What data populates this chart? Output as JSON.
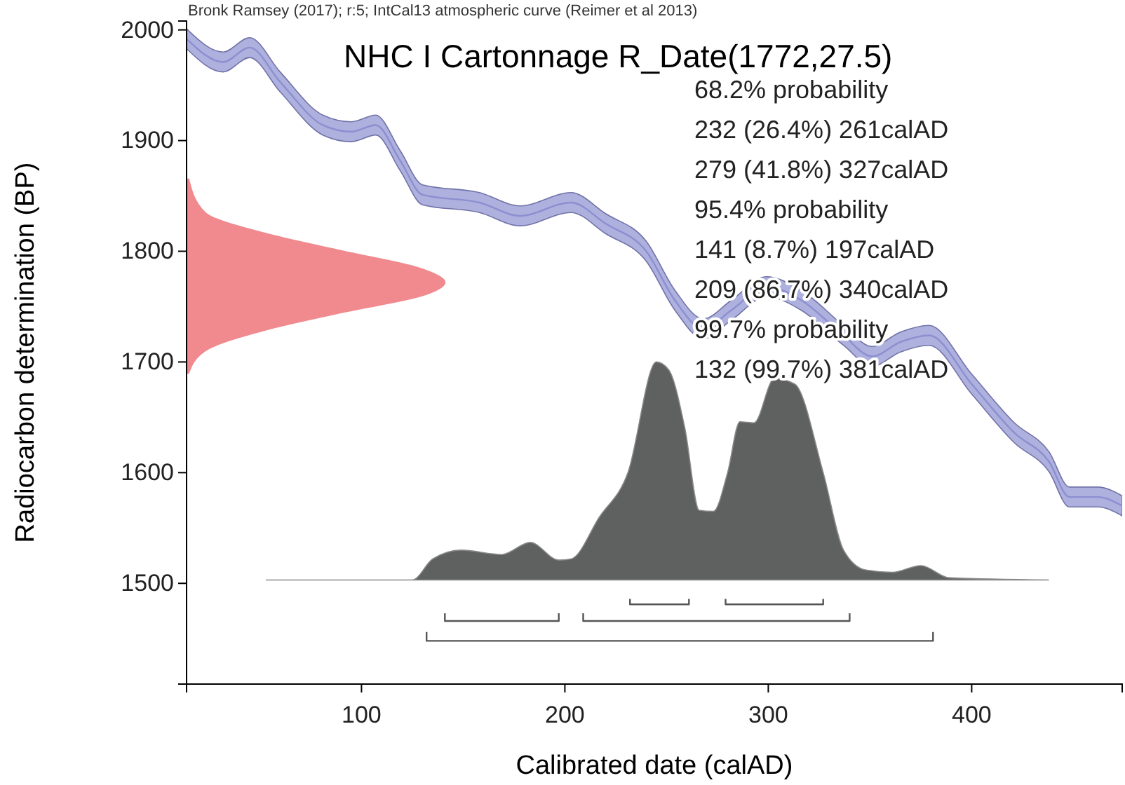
{
  "chart_data": {
    "type": "line",
    "title": "NHC I Cartonnage R_Date(1772,27.5)",
    "xlabel": "Calibrated date (calAD)",
    "ylabel": "Radiocarbon determination (BP)",
    "annotations": [
      "Bronk Ramsey (2017); r:5; IntCal13 atmospheric curve (Reimer et al 2013)",
      "68.2% probability",
      "232 (26.4%) 261calAD",
      "279 (41.8%) 327calAD",
      "95.4% probability",
      "141 (8.7%) 197calAD",
      "209 (86.7%) 340calAD",
      "99.7% probability",
      "132 (99.7%) 381calAD"
    ],
    "xlim": [
      14,
      474
    ],
    "ylim": [
      1409,
      2008
    ],
    "xticks": [
      100,
      200,
      300,
      400
    ],
    "yticks": [
      1500,
      1600,
      1700,
      1800,
      1900,
      2000
    ],
    "series": [
      {
        "type": "line",
        "color": "#8c8fd0",
        "x": [
          14,
          32,
          45,
          60,
          81,
          95,
          107,
          119,
          130,
          158,
          178,
          203,
          220,
          240,
          254,
          268,
          282,
          299,
          316,
          337,
          351,
          365,
          379,
          400,
          421,
          438,
          448,
          462,
          474
        ],
        "values": [
          1992,
          1971,
          1984,
          1953,
          1914,
          1908,
          1914,
          1882,
          1851,
          1844,
          1832,
          1844,
          1825,
          1800,
          1756,
          1730,
          1747,
          1768,
          1756,
          1724,
          1705,
          1718,
          1724,
          1680,
          1636,
          1610,
          1578,
          1578,
          1570
        ],
        "upper": [
          2001,
          1980,
          1993,
          1962,
          1923,
          1917,
          1923,
          1891,
          1860,
          1853,
          1841,
          1853,
          1834,
          1809,
          1765,
          1739,
          1756,
          1777,
          1765,
          1733,
          1714,
          1727,
          1733,
          1689,
          1645,
          1619,
          1587,
          1587,
          1579
        ],
        "lower": [
          1983,
          1962,
          1975,
          1944,
          1905,
          1899,
          1905,
          1873,
          1842,
          1835,
          1823,
          1835,
          1816,
          1791,
          1747,
          1721,
          1738,
          1759,
          1747,
          1715,
          1696,
          1709,
          1715,
          1671,
          1627,
          1601,
          1569,
          1569,
          1561
        ]
      },
      {
        "type": "area",
        "color": "#f08a8e",
        "x": [
          15,
          23,
          55,
          91,
          130,
          141,
          128,
          91,
          55,
          23,
          15
        ],
        "values": [
          1690,
          1710,
          1730,
          1745,
          1760,
          1772,
          1785,
          1800,
          1815,
          1835,
          1865
        ]
      },
      {
        "type": "area",
        "color": "#5f6060",
        "x": [
          53,
          125,
          135,
          149,
          169,
          183,
          197,
          203,
          217,
          231,
          245,
          251,
          259,
          266,
          273,
          280,
          286,
          293,
          303,
          313,
          327,
          337,
          348,
          361,
          375,
          389,
          438
        ],
        "values": [
          1503,
          1503,
          1522,
          1530,
          1526,
          1537,
          1521,
          1522,
          1560,
          1600,
          1700,
          1693,
          1640,
          1566,
          1565,
          1600,
          1646,
          1645,
          1685,
          1680,
          1600,
          1530,
          1512,
          1510,
          1516,
          1505,
          1503
        ]
      },
      {
        "color": "#555555",
        "x": [
          232,
          232,
          261,
          261
        ],
        "values": [
          1486,
          1481,
          1481,
          1486
        ]
      },
      {
        "color": "#555555",
        "x": [
          279,
          279,
          327,
          327
        ],
        "values": [
          1486,
          1481,
          1481,
          1486
        ]
      },
      {
        "color": "#555555",
        "x": [
          141,
          141,
          197,
          197
        ],
        "values": [
          1473,
          1466,
          1466,
          1473
        ]
      },
      {
        "color": "#555555",
        "x": [
          209,
          209,
          340,
          340
        ],
        "values": [
          1473,
          1466,
          1466,
          1473
        ]
      },
      {
        "color": "#555555",
        "x": [
          132,
          132,
          381,
          381
        ],
        "values": [
          1456,
          1448,
          1448,
          1456
        ]
      }
    ]
  }
}
